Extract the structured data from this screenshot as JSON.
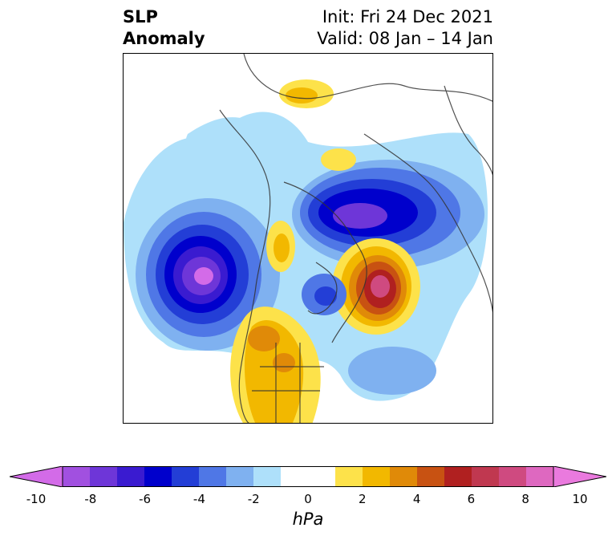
{
  "title": {
    "left_line1": "SLP",
    "left_line2": "Anomaly",
    "right_line1": "Init: Fri 24 Dec 2021",
    "right_line2": "Valid: 08 Jan – 14 Jan"
  },
  "colorbar": {
    "units": "hPa",
    "ticks": [
      "-10",
      "-8",
      "-6",
      "-4",
      "-2",
      "0",
      "2",
      "4",
      "6",
      "8",
      "10"
    ],
    "colors": [
      "#d36be8",
      "#a150e0",
      "#6e36d8",
      "#3a1bd0",
      "#0000cc",
      "#233ed6",
      "#4f77e6",
      "#7fb1f0",
      "#aee0fa",
      "#ffffff",
      "#ffffff",
      "#fde24a",
      "#f2b800",
      "#e08a08",
      "#c85212",
      "#b02020",
      "#c03850",
      "#cf4a80",
      "#de68c0",
      "#ea7ade"
    ]
  }
}
